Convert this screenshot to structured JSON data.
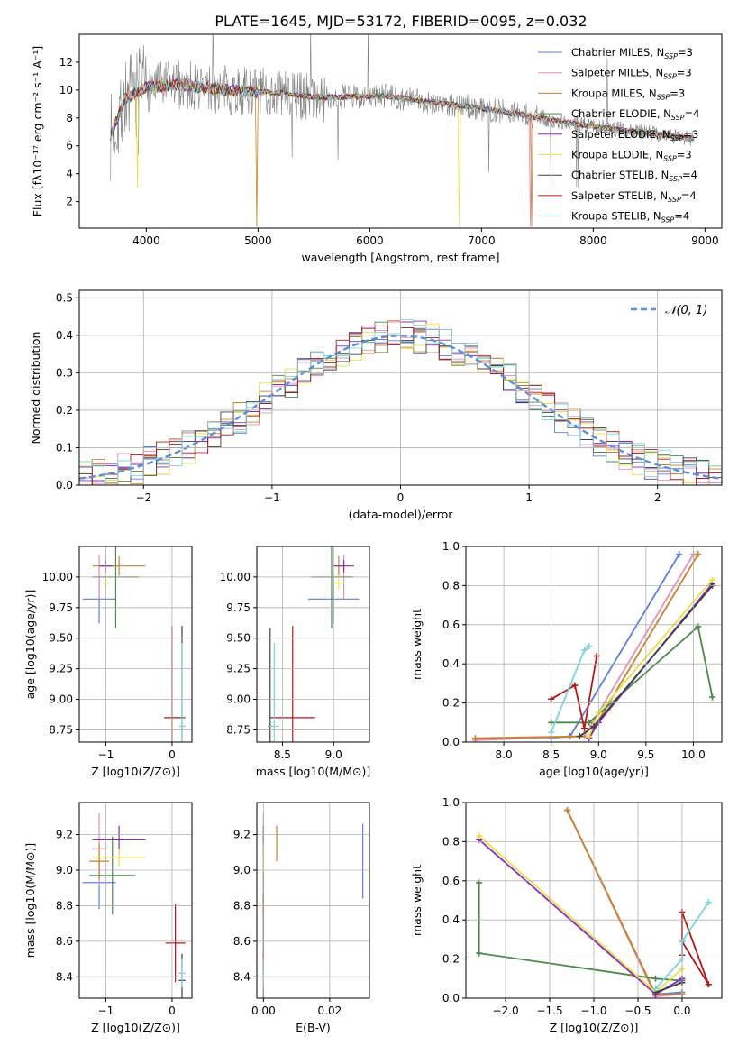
{
  "title": "PLATE=1645, MJD=53172, FIBERID=0095, z=0.032",
  "models": [
    {
      "name": "Chabrier MILES",
      "nssp": "3",
      "color": "#5b7fd9"
    },
    {
      "name": "Salpeter MILES",
      "nssp": "3",
      "color": "#e88fb8"
    },
    {
      "name": "Kroupa MILES",
      "nssp": "3",
      "color": "#c8822a"
    },
    {
      "name": "Chabrier ELODIE",
      "nssp": "4",
      "color": "#4a8a4a"
    },
    {
      "name": "Salpeter ELODIE",
      "nssp": "3",
      "color": "#8e2ab8"
    },
    {
      "name": "Kroupa ELODIE",
      "nssp": "3",
      "color": "#e6e34a"
    },
    {
      "name": "Chabrier STELIB",
      "nssp": "4",
      "color": "#404040"
    },
    {
      "name": "Salpeter STELIB",
      "nssp": "4",
      "color": "#b01818"
    },
    {
      "name": "Kroupa STELIB",
      "nssp": "4",
      "color": "#7ed3dc"
    }
  ],
  "legend_nssp_prefix": "N",
  "legend_nssp_sub": "SSP",
  "chart_data": [
    {
      "id": "spectrum",
      "type": "line",
      "xlabel": "wavelength [Angstrom, rest frame]",
      "ylabel": "Flux [fλ10⁻¹⁷ erg cm⁻² s⁻¹ A⁻¹]",
      "xlim": [
        3400,
        9150
      ],
      "ylim": [
        0.1,
        14
      ],
      "xticks": [
        4000,
        5000,
        6000,
        7000,
        8000,
        9000
      ],
      "yticks": [
        2,
        4,
        6,
        8,
        10,
        12
      ],
      "data_color": "#808080",
      "data_envelope": {
        "x": [
          3680,
          3800,
          4000,
          4300,
          4600,
          4900,
          5200,
          5500,
          5800,
          6100,
          6400,
          6700,
          7000,
          7300,
          7600,
          7900,
          8200,
          8500,
          8800
        ],
        "y": [
          6.6,
          9.3,
          10.2,
          10.4,
          10.1,
          9.9,
          9.8,
          9.5,
          9.5,
          9.6,
          9.3,
          9.0,
          8.7,
          8.3,
          7.9,
          7.5,
          7.2,
          6.9,
          6.6
        ]
      },
      "model_dips": [
        {
          "model": "Kroupa MILES",
          "x": 4990,
          "y": 0.2
        },
        {
          "model": "Kroupa MILES",
          "x": 7450,
          "y": 0.2
        },
        {
          "model": "Kroupa ELODIE",
          "x": 6800,
          "y": 0.2
        },
        {
          "model": "Kroupa ELODIE",
          "x": 3920,
          "y": 3.0
        },
        {
          "model": "Salpeter MILES",
          "x": 7440,
          "y": 0.2
        }
      ]
    },
    {
      "id": "residuals",
      "type": "histogram",
      "xlabel": "(data-model)/error",
      "ylabel": "Normed distribution",
      "xlim": [
        -2.5,
        2.5
      ],
      "ylim": [
        0,
        0.52
      ],
      "xticks": [
        -2,
        -1,
        0,
        1,
        2
      ],
      "yticks": [
        0.0,
        0.1,
        0.2,
        0.3,
        0.4,
        0.5
      ],
      "gaussian_label": "𝒩(0, 1)",
      "gaussian_color": "#5b8fd9",
      "bin_width": 0.1
    },
    {
      "id": "age_vs_Z",
      "type": "errorbar",
      "xlabel": "Z [log10(Z/Z⊙)]",
      "ylabel": "age  [log10(age/yr)]",
      "xlim": [
        -1.4,
        0.3
      ],
      "ylim": [
        8.65,
        10.25
      ],
      "xticks": [
        -1,
        0
      ],
      "yticks": [
        8.75,
        9.0,
        9.25,
        9.5,
        9.75,
        10.0
      ],
      "points": [
        {
          "model": "Chabrier MILES",
          "x": -1.1,
          "y": 9.82,
          "xerr": 0.25,
          "yerr": 0.2
        },
        {
          "model": "Salpeter MILES",
          "x": -1.1,
          "y": 10.0,
          "xerr": 0.1,
          "yerr": 0.18
        },
        {
          "model": "Kroupa MILES",
          "x": -0.8,
          "y": 10.09,
          "xerr": 0.4,
          "yerr": 0.08
        },
        {
          "model": "Chabrier ELODIE",
          "x": -0.85,
          "y": 10.0,
          "xerr": 0.35,
          "yerr": 0.42
        },
        {
          "model": "Salpeter ELODIE",
          "x": -1.0,
          "y": 10.09,
          "xerr": 0.1,
          "yerr": 0.05
        },
        {
          "model": "Kroupa ELODIE",
          "x": -1.0,
          "y": 9.95,
          "xerr": 0.05,
          "yerr": 0.05
        },
        {
          "model": "Chabrier STELIB",
          "x": 0.15,
          "y": 8.85,
          "xerr": 0.05,
          "yerr": 0.75
        },
        {
          "model": "Salpeter STELIB",
          "x": 0.0,
          "y": 8.85,
          "xerr": 0.12,
          "yerr": 0.75
        },
        {
          "model": "Kroupa STELIB",
          "x": 0.15,
          "y": 8.78,
          "xerr": 0.05,
          "yerr": 0.68
        }
      ]
    },
    {
      "id": "age_vs_mass",
      "type": "errorbar",
      "xlabel": "mass [log10(M/M⊙)]",
      "ylabel": "",
      "xlim": [
        8.25,
        9.35
      ],
      "ylim": [
        8.65,
        10.25
      ],
      "xticks": [
        8.5,
        9.0
      ],
      "yticks": [
        8.75,
        9.0,
        9.25,
        9.5,
        9.75,
        10.0
      ],
      "points": [
        {
          "model": "Chabrier MILES",
          "x": 9.0,
          "y": 9.82,
          "xerr": 0.25,
          "yerr": 0.2
        },
        {
          "model": "Salpeter MILES",
          "x": 9.1,
          "y": 10.0,
          "xerr": 0.1,
          "yerr": 0.18
        },
        {
          "model": "Kroupa MILES",
          "x": 9.05,
          "y": 10.09,
          "xerr": 0.05,
          "yerr": 0.08
        },
        {
          "model": "Chabrier ELODIE",
          "x": 8.98,
          "y": 10.0,
          "xerr": 0.2,
          "yerr": 0.42
        },
        {
          "model": "Salpeter ELODIE",
          "x": 9.1,
          "y": 10.09,
          "xerr": 0.1,
          "yerr": 0.05
        },
        {
          "model": "Kroupa ELODIE",
          "x": 9.05,
          "y": 9.95,
          "xerr": 0.05,
          "yerr": 0.05
        },
        {
          "model": "Chabrier STELIB",
          "x": 8.38,
          "y": 8.78,
          "xerr": 0.02,
          "yerr": 0.8
        },
        {
          "model": "Salpeter STELIB",
          "x": 8.6,
          "y": 8.85,
          "xerr": 0.22,
          "yerr": 0.75
        },
        {
          "model": "Kroupa STELIB",
          "x": 8.42,
          "y": 8.78,
          "xerr": 0.05,
          "yerr": 0.68
        }
      ]
    },
    {
      "id": "weight_vs_age",
      "type": "line",
      "xlabel": "age  [log10(age/yr)]",
      "ylabel": "mass weight",
      "xlim": [
        7.6,
        10.3
      ],
      "ylim": [
        0,
        1
      ],
      "xticks": [
        8.0,
        8.5,
        9.0,
        9.5,
        10.0
      ],
      "yticks": [
        0.0,
        0.2,
        0.4,
        0.6,
        0.8,
        1.0
      ],
      "series": [
        {
          "model": "Chabrier MILES",
          "x": [
            8.5,
            8.7,
            9.85
          ],
          "y": [
            0.02,
            0.03,
            0.96
          ]
        },
        {
          "model": "Salpeter MILES",
          "x": [
            7.7,
            8.85,
            10.0
          ],
          "y": [
            0.01,
            0.03,
            0.96
          ]
        },
        {
          "model": "Kroupa MILES",
          "x": [
            7.7,
            8.9,
            10.05
          ],
          "y": [
            0.02,
            0.03,
            0.96
          ]
        },
        {
          "model": "Chabrier ELODIE",
          "x": [
            8.5,
            8.9,
            10.05,
            10.2
          ],
          "y": [
            0.1,
            0.1,
            0.59,
            0.23
          ]
        },
        {
          "model": "Salpeter ELODIE",
          "x": [
            8.9,
            9.0,
            10.2
          ],
          "y": [
            0.02,
            0.1,
            0.81
          ]
        },
        {
          "model": "Kroupa ELODIE",
          "x": [
            8.9,
            9.0,
            10.2
          ],
          "y": [
            0.03,
            0.15,
            0.83
          ]
        },
        {
          "model": "Chabrier STELIB",
          "x": [
            8.8,
            8.95,
            10.2
          ],
          "y": [
            0.03,
            0.08,
            0.8
          ]
        },
        {
          "model": "Salpeter STELIB",
          "x": [
            8.5,
            8.75,
            8.85,
            8.98
          ],
          "y": [
            0.22,
            0.29,
            0.07,
            0.44
          ]
        },
        {
          "model": "Kroupa STELIB",
          "x": [
            8.5,
            8.85,
            8.9
          ],
          "y": [
            0.05,
            0.47,
            0.49
          ]
        }
      ]
    },
    {
      "id": "mass_vs_Z",
      "type": "errorbar",
      "xlabel": "Z [log10(Z/Z⊙)]",
      "ylabel": "mass [log10(M/M⊙)]",
      "xlim": [
        -1.4,
        0.3
      ],
      "ylim": [
        8.28,
        9.38
      ],
      "xticks": [
        -1,
        0
      ],
      "yticks": [
        8.4,
        8.6,
        8.8,
        9.0,
        9.2
      ],
      "points": [
        {
          "model": "Chabrier MILES",
          "x": -1.1,
          "y": 8.93,
          "xerr": 0.25,
          "yerr": 0.15
        },
        {
          "model": "Salpeter MILES",
          "x": -1.1,
          "y": 9.12,
          "xerr": 0.1,
          "yerr": 0.2
        },
        {
          "model": "Kroupa MILES",
          "x": -1.1,
          "y": 9.05,
          "xerr": 0.15,
          "yerr": 0.1
        },
        {
          "model": "Chabrier ELODIE",
          "x": -0.9,
          "y": 8.97,
          "xerr": 0.35,
          "yerr": 0.22
        },
        {
          "model": "Salpeter ELODIE",
          "x": -0.8,
          "y": 9.17,
          "xerr": 0.4,
          "yerr": 0.08
        },
        {
          "model": "Kroupa ELODIE",
          "x": -0.8,
          "y": 9.07,
          "xerr": 0.4,
          "yerr": 0.05
        },
        {
          "model": "Chabrier STELIB",
          "x": 0.15,
          "y": 8.38,
          "xerr": 0.05,
          "yerr": 0.15
        },
        {
          "model": "Salpeter STELIB",
          "x": 0.05,
          "y": 8.59,
          "xerr": 0.15,
          "yerr": 0.22
        },
        {
          "model": "Kroupa STELIB",
          "x": 0.15,
          "y": 8.42,
          "xerr": 0.05,
          "yerr": 0.08
        }
      ]
    },
    {
      "id": "mass_vs_ebv",
      "type": "errorbar",
      "xlabel": "E(B-V)",
      "ylabel": "",
      "xlim": [
        -0.002,
        0.032
      ],
      "ylim": [
        8.28,
        9.38
      ],
      "xticks": [
        0.0,
        0.02
      ],
      "yticks": [
        8.4,
        8.6,
        8.8,
        9.0,
        9.2
      ],
      "points": [
        {
          "model": "Chabrier MILES",
          "x": 0.03,
          "y": 9.05,
          "xerr": 0,
          "yerr": 0.21
        },
        {
          "model": "Salpeter MILES",
          "x": 0.0,
          "y": 9.12,
          "xerr": 0,
          "yerr": 0.2
        },
        {
          "model": "Kroupa MILES",
          "x": 0.004,
          "y": 9.15,
          "xerr": 0,
          "yerr": 0.1
        },
        {
          "model": "Chabrier ELODIE",
          "x": 0.0,
          "y": 8.97,
          "xerr": 0,
          "yerr": 0.22
        },
        {
          "model": "Salpeter ELODIE",
          "x": 0.0,
          "y": 9.17,
          "xerr": 0,
          "yerr": 0.08
        },
        {
          "model": "Kroupa ELODIE",
          "x": 0.0,
          "y": 9.07,
          "xerr": 0,
          "yerr": 0.08
        },
        {
          "model": "Chabrier STELIB",
          "x": 0.0,
          "y": 8.38,
          "xerr": 0,
          "yerr": 0.15
        },
        {
          "model": "Salpeter STELIB",
          "x": 0.0,
          "y": 8.65,
          "xerr": 0,
          "yerr": 0.22
        },
        {
          "model": "Kroupa STELIB",
          "x": 0.0,
          "y": 8.42,
          "xerr": 0,
          "yerr": 0.08
        }
      ]
    },
    {
      "id": "weight_vs_Z",
      "type": "line",
      "xlabel": "Z [log10(Z/Z⊙)]",
      "ylabel": "mass weight",
      "xlim": [
        -2.45,
        0.45
      ],
      "ylim": [
        0,
        1
      ],
      "xticks": [
        -2.0,
        -1.5,
        -1.0,
        -0.5,
        0.0
      ],
      "yticks": [
        0.0,
        0.2,
        0.4,
        0.6,
        0.8,
        1.0
      ],
      "series": [
        {
          "model": "Chabrier MILES",
          "x": [
            -1.3,
            -0.3,
            0.0
          ],
          "y": [
            0.96,
            0.02,
            0.03
          ]
        },
        {
          "model": "Salpeter MILES",
          "x": [
            -1.3,
            -0.3,
            0.0
          ],
          "y": [
            0.96,
            0.01,
            0.02
          ]
        },
        {
          "model": "Kroupa MILES",
          "x": [
            -1.3,
            -0.3,
            0.0
          ],
          "y": [
            0.96,
            0.02,
            0.02
          ]
        },
        {
          "model": "Chabrier ELODIE",
          "x": [
            -2.3,
            -2.3,
            -0.3,
            0.0
          ],
          "y": [
            0.59,
            0.23,
            0.1,
            0.09
          ]
        },
        {
          "model": "Salpeter ELODIE",
          "x": [
            -2.3,
            -0.3,
            0.0
          ],
          "y": [
            0.81,
            0.02,
            0.1
          ]
        },
        {
          "model": "Kroupa ELODIE",
          "x": [
            -2.3,
            -0.3,
            0.0
          ],
          "y": [
            0.83,
            0.03,
            0.15
          ]
        },
        {
          "model": "Chabrier STELIB",
          "x": [
            -0.3,
            0.0
          ],
          "y": [
            0.03,
            0.08
          ]
        },
        {
          "model": "Salpeter STELIB",
          "x": [
            0.0,
            0.0,
            0.3,
            0.0
          ],
          "y": [
            0.22,
            0.44,
            0.07,
            0.29
          ]
        },
        {
          "model": "Kroupa STELIB",
          "x": [
            -0.3,
            0.0,
            0.0,
            0.3
          ],
          "y": [
            0.05,
            0.2,
            0.29,
            0.49
          ]
        }
      ]
    }
  ]
}
